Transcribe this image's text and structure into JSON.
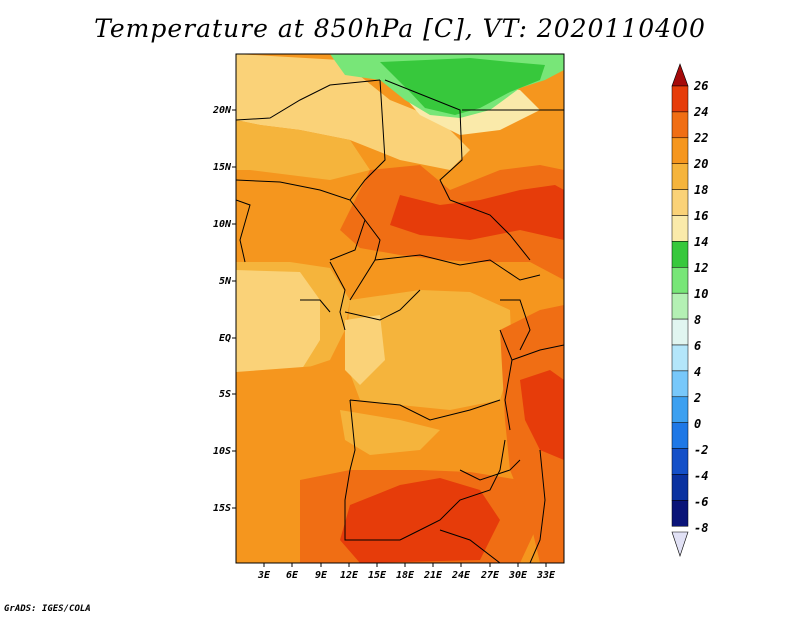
{
  "title": "Temperature at 850hPa [C], VT: 2020110400",
  "credit": "GrADS: IGES/COLA",
  "lat_labels": [
    "20N",
    "15N",
    "10N",
    "5N",
    "EQ",
    "5S",
    "10S",
    "15S"
  ],
  "lon_labels": [
    "3E",
    "6E",
    "9E",
    "12E",
    "15E",
    "18E",
    "21E",
    "24E",
    "27E",
    "30E",
    "33E"
  ],
  "colorbar": {
    "levels": [
      "26",
      "24",
      "22",
      "20",
      "18",
      "16",
      "14",
      "12",
      "10",
      "8",
      "6",
      "4",
      "2",
      "0",
      "-2",
      "-4",
      "-6",
      "-8"
    ],
    "colors": [
      "#a50a0a",
      "#e63c0a",
      "#f06e14",
      "#f5961e",
      "#f5b43c",
      "#fad278",
      "#faeaaa",
      "#37c83c",
      "#78e678",
      "#b4f0b4",
      "#e1f5f0",
      "#b4e6fa",
      "#78c8fa",
      "#3ca0f0",
      "#1e78e6",
      "#1450c8",
      "#0a32a0",
      "#0a1478",
      "#e1e1f5"
    ]
  },
  "field_colors": {
    "c14": "#faeaaa",
    "c16": "#fad278",
    "c18": "#f5b43c",
    "c20": "#f5961e",
    "c22": "#f06e14",
    "c24": "#e63c0a",
    "c10": "#78e678",
    "c12": "#37c83c"
  }
}
